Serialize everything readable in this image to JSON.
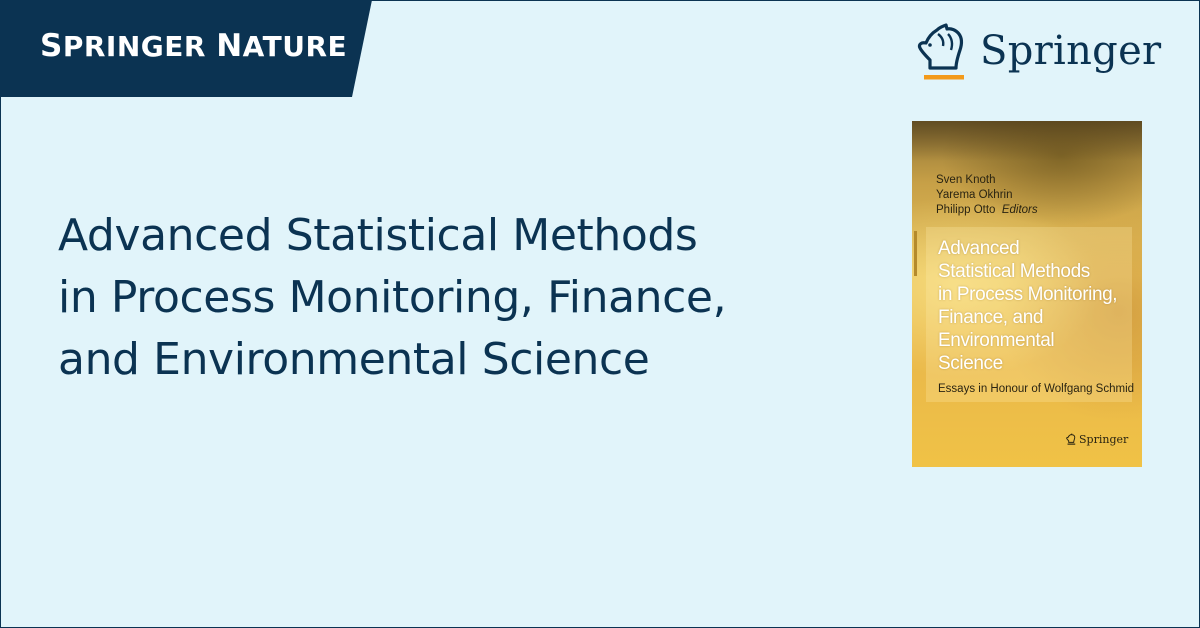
{
  "banner": {
    "prefix_big": "S",
    "prefix": "PRINGER ",
    "suffix_big": "N",
    "suffix": "ATURE"
  },
  "logo": {
    "icon": "springer-horse-icon",
    "wordmark": "Springer",
    "accent_color": "#f39a1a"
  },
  "title": {
    "lines": [
      "Advanced Statistical Methods",
      "in Process Monitoring, Finance,",
      "and Environmental Science"
    ]
  },
  "book": {
    "editors": [
      "Sven Knoth",
      "Yarema Okhrin",
      "Philipp Otto"
    ],
    "editors_role": "Editors",
    "title_lines": [
      "Advanced",
      "Statistical Methods",
      "in Process Monitoring,",
      "Finance, and",
      "Environmental",
      "Science"
    ],
    "subtitle": "Essays in Honour of Wolfgang Schmid",
    "publisher": "Springer"
  },
  "colors": {
    "navy": "#0b3352",
    "background": "#e1f4fa"
  }
}
